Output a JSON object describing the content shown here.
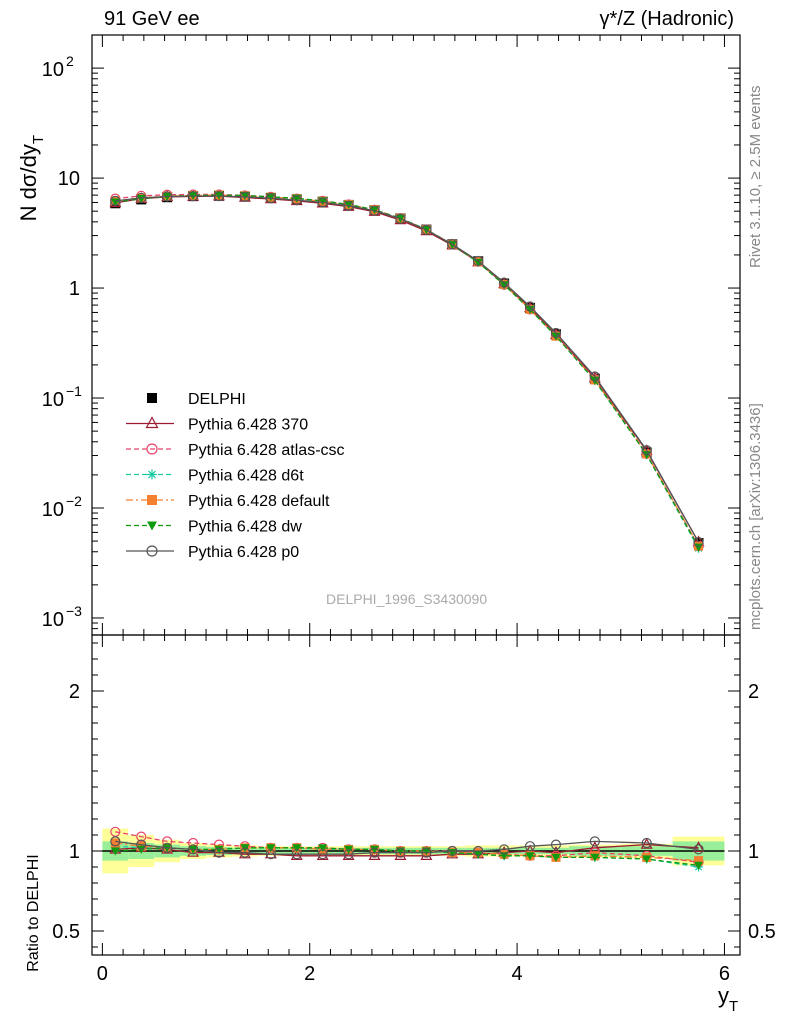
{
  "header": {
    "left": "91 GeV ee",
    "right": "γ*/Z (Hadronic)"
  },
  "side_texts": {
    "rivet": "Rivet 3.1.10, ≥ 2.5M events",
    "mcplots": "mcplots.cern.ch [arXiv:1306.3436]"
  },
  "watermark": "DELPHI_1996_S3430090",
  "chart_data": [
    {
      "type": "line",
      "panel": "main",
      "ylabel": "N dσ/dy_T",
      "yscale": "log",
      "ylim": [
        0.0007,
        200
      ],
      "xlim": [
        -0.1,
        6.15
      ],
      "y_ticks": [
        "10^-3",
        "10^-2",
        "10^-1",
        "1",
        "10",
        "10^2"
      ],
      "x": [
        0.125,
        0.375,
        0.625,
        0.875,
        1.125,
        1.375,
        1.625,
        1.875,
        2.125,
        2.375,
        2.625,
        2.875,
        3.125,
        3.375,
        3.625,
        3.875,
        4.125,
        4.375,
        4.75,
        5.25,
        5.75
      ],
      "legend_position": "middle-left",
      "series": [
        {
          "name": "DELPHI",
          "color": "#000000",
          "marker": "square-filled",
          "line": "none",
          "values": [
            5.9,
            6.4,
            6.7,
            6.85,
            6.9,
            6.8,
            6.6,
            6.4,
            6.1,
            5.7,
            5.1,
            4.3,
            3.4,
            2.5,
            1.75,
            1.1,
            0.66,
            0.38,
            0.15,
            0.032,
            0.0048
          ]
        },
        {
          "name": "Pythia 6.428 370",
          "color": "#9b1b30",
          "marker": "triangle-open",
          "line": "solid",
          "values": [
            5.95,
            6.5,
            6.75,
            6.8,
            6.85,
            6.65,
            6.45,
            6.2,
            5.9,
            5.5,
            4.95,
            4.15,
            3.3,
            2.45,
            1.72,
            1.09,
            0.66,
            0.375,
            0.152,
            0.033,
            0.0049
          ]
        },
        {
          "name": "Pythia 6.428 atlas-csc",
          "color": "#e8436a",
          "marker": "circle-open",
          "line": "dashed",
          "values": [
            6.5,
            6.9,
            7.05,
            7.1,
            7.1,
            6.95,
            6.75,
            6.5,
            6.2,
            5.75,
            5.15,
            4.32,
            3.4,
            2.5,
            1.74,
            1.07,
            0.64,
            0.37,
            0.149,
            0.031,
            0.0045
          ]
        },
        {
          "name": "Pythia 6.428 d6t",
          "color": "#17c9a0",
          "marker": "star",
          "line": "dashed",
          "values": [
            6.1,
            6.55,
            6.8,
            6.95,
            7.0,
            6.9,
            6.7,
            6.5,
            6.15,
            5.75,
            5.15,
            4.32,
            3.4,
            2.5,
            1.72,
            1.07,
            0.64,
            0.365,
            0.144,
            0.0305,
            0.0043
          ]
        },
        {
          "name": "Pythia 6.428 default",
          "color": "#f47f30",
          "marker": "square-filled",
          "line": "dashdot",
          "values": [
            6.2,
            6.6,
            6.85,
            6.95,
            7.0,
            6.9,
            6.7,
            6.5,
            6.15,
            5.75,
            5.15,
            4.32,
            3.4,
            2.5,
            1.73,
            1.08,
            0.64,
            0.365,
            0.146,
            0.031,
            0.0045
          ]
        },
        {
          "name": "Pythia 6.428 dw",
          "color": "#109a10",
          "marker": "triangle-down-filled",
          "line": "dashed",
          "values": [
            6.05,
            6.5,
            6.8,
            6.95,
            7.0,
            6.95,
            6.75,
            6.55,
            6.2,
            5.75,
            5.15,
            4.3,
            3.4,
            2.48,
            1.71,
            1.07,
            0.64,
            0.365,
            0.145,
            0.0305,
            0.0044
          ]
        },
        {
          "name": "Pythia 6.428 p0",
          "color": "#555555",
          "marker": "circle-open",
          "line": "solid",
          "values": [
            6.2,
            6.6,
            6.8,
            6.85,
            6.85,
            6.75,
            6.55,
            6.3,
            6.0,
            5.6,
            5.05,
            4.27,
            3.38,
            2.5,
            1.76,
            1.12,
            0.68,
            0.39,
            0.157,
            0.0335,
            0.0049
          ]
        }
      ]
    },
    {
      "type": "line",
      "panel": "ratio",
      "xlabel": "y_T",
      "ylabel": "Ratio to DELPHI",
      "ylim": [
        0.35,
        2.35
      ],
      "xlim": [
        -0.1,
        6.15
      ],
      "x_ticks": [
        "0",
        "2",
        "4",
        "6"
      ],
      "y_ticks": [
        "0.5",
        "1",
        "2"
      ],
      "x": [
        0.125,
        0.375,
        0.625,
        0.875,
        1.125,
        1.375,
        1.625,
        1.875,
        2.125,
        2.375,
        2.625,
        2.875,
        3.125,
        3.375,
        3.625,
        3.875,
        4.125,
        4.375,
        4.75,
        5.25,
        5.75
      ],
      "bin_edges": [
        0,
        0.25,
        0.5,
        0.75,
        1.0,
        1.25,
        1.5,
        1.75,
        2.0,
        2.25,
        2.5,
        2.75,
        3.0,
        3.25,
        3.5,
        3.75,
        4.0,
        4.25,
        4.5,
        5.0,
        5.5,
        6.0
      ],
      "band_stat": [
        0.06,
        0.05,
        0.04,
        0.03,
        0.025,
        0.02,
        0.02,
        0.02,
        0.02,
        0.02,
        0.02,
        0.02,
        0.02,
        0.02,
        0.02,
        0.02,
        0.02,
        0.02,
        0.03,
        0.03,
        0.06
      ],
      "band_total": [
        0.14,
        0.1,
        0.07,
        0.05,
        0.04,
        0.035,
        0.03,
        0.03,
        0.03,
        0.03,
        0.03,
        0.03,
        0.03,
        0.03,
        0.035,
        0.035,
        0.035,
        0.035,
        0.04,
        0.045,
        0.09
      ],
      "series": [
        {
          "name": "Pythia 6.428 370",
          "values": [
            1.01,
            1.02,
            1.01,
            0.99,
            0.99,
            0.98,
            0.98,
            0.97,
            0.97,
            0.97,
            0.97,
            0.97,
            0.97,
            0.98,
            0.98,
            0.99,
            1.0,
            0.99,
            1.02,
            1.04,
            1.02
          ]
        },
        {
          "name": "Pythia 6.428 atlas-csc",
          "values": [
            1.12,
            1.09,
            1.06,
            1.05,
            1.04,
            1.03,
            1.02,
            1.02,
            1.02,
            1.01,
            1.01,
            1.0,
            1.0,
            1.0,
            0.99,
            0.98,
            0.97,
            0.97,
            0.99,
            0.97,
            0.93
          ]
        },
        {
          "name": "Pythia 6.428 d6t",
          "values": [
            1.03,
            1.02,
            1.02,
            1.01,
            1.01,
            1.02,
            1.02,
            1.02,
            1.01,
            1.01,
            1.01,
            1.0,
            1.0,
            0.99,
            0.98,
            0.97,
            0.97,
            0.96,
            0.96,
            0.95,
            0.9
          ]
        },
        {
          "name": "Pythia 6.428 default",
          "values": [
            1.05,
            1.03,
            1.02,
            1.01,
            1.01,
            1.02,
            1.02,
            1.02,
            1.01,
            1.01,
            1.01,
            1.0,
            1.0,
            0.99,
            0.99,
            0.98,
            0.97,
            0.96,
            0.97,
            0.96,
            0.94
          ]
        },
        {
          "name": "Pythia 6.428 dw",
          "values": [
            1.0,
            1.01,
            1.02,
            1.01,
            1.01,
            1.02,
            1.02,
            1.02,
            1.02,
            1.01,
            1.01,
            1.0,
            1.0,
            0.99,
            0.98,
            0.97,
            0.97,
            0.96,
            0.96,
            0.95,
            0.91
          ]
        },
        {
          "name": "Pythia 6.428 p0",
          "values": [
            1.06,
            1.04,
            1.02,
            1.01,
            0.99,
            0.99,
            0.98,
            0.98,
            0.98,
            0.98,
            0.99,
            0.99,
            0.99,
            1.0,
            1.0,
            1.01,
            1.03,
            1.04,
            1.06,
            1.05,
            1.01
          ]
        }
      ]
    }
  ]
}
